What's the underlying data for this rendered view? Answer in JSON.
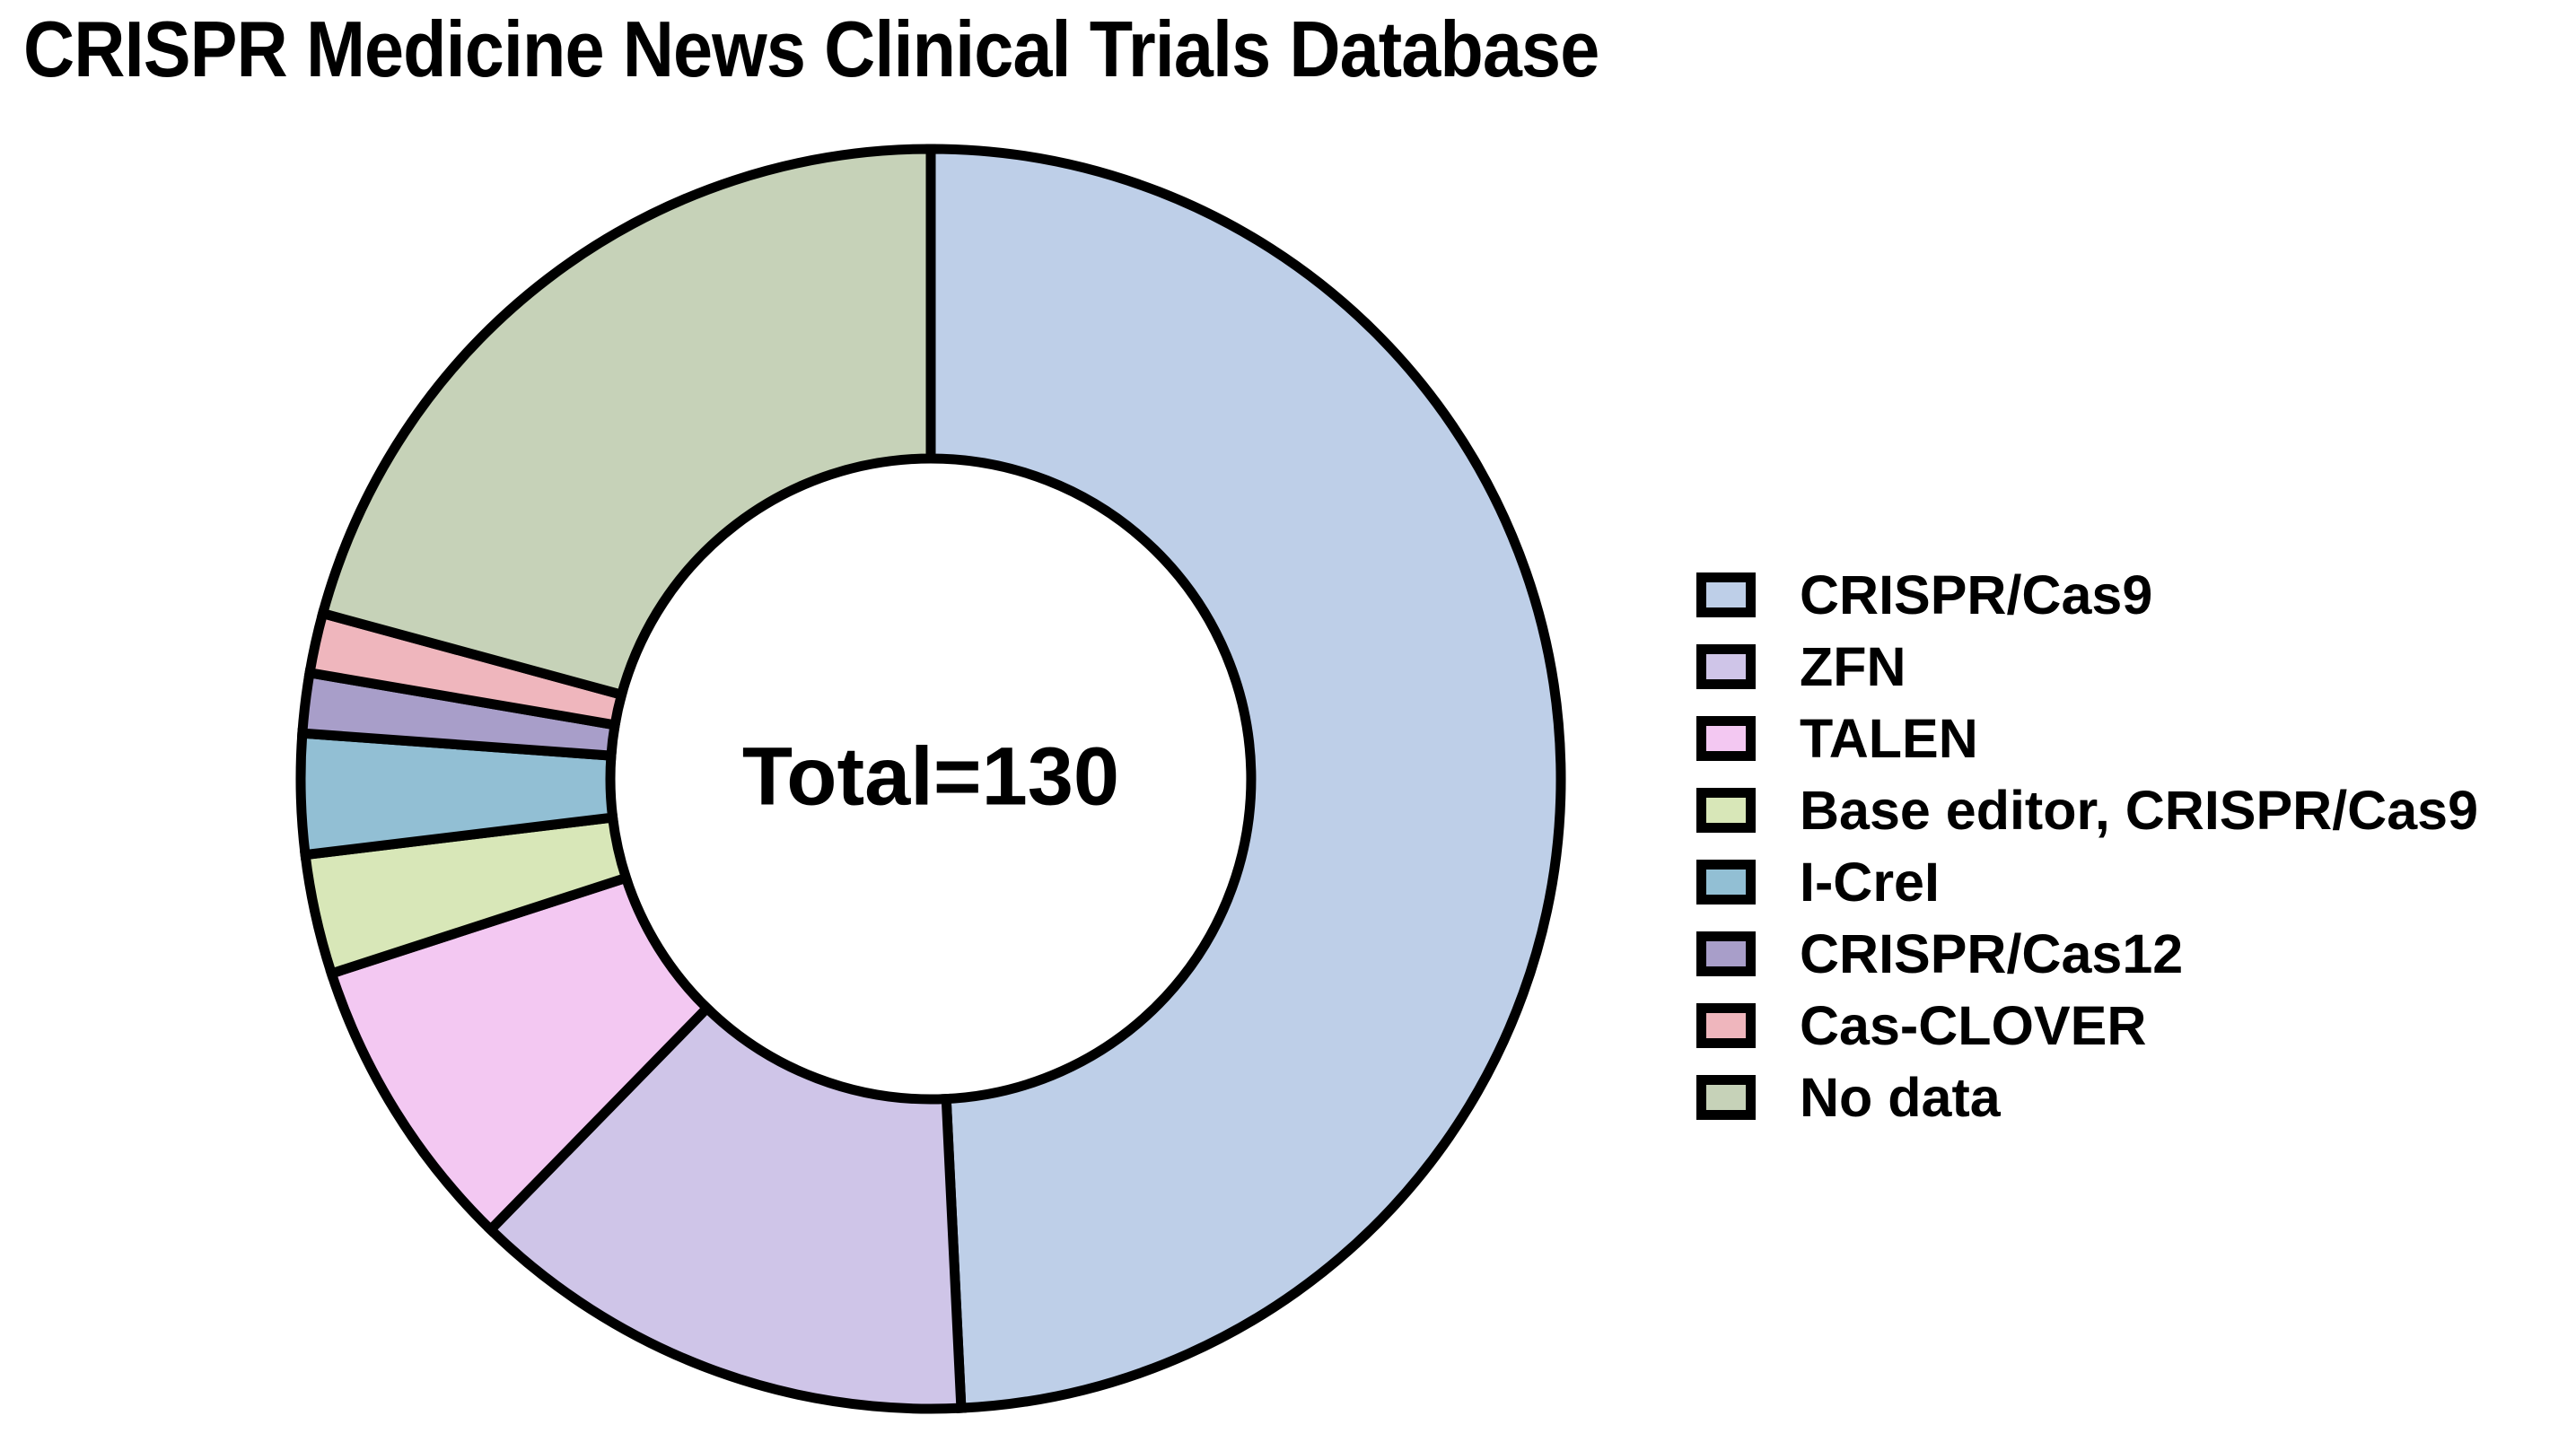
{
  "title": "CRISPR Medicine News Clinical Trials Database",
  "chart_data": {
    "type": "pie",
    "subtype": "donut",
    "title": "CRISPR Medicine News Clinical Trials Database",
    "center_label": "Total=130",
    "total": 130,
    "start_angle_deg": 0,
    "direction": "clockwise",
    "legend_position": "right",
    "stroke_color": "#000000",
    "background_color": "#ffffff",
    "series": [
      {
        "label": "CRISPR/Cas9",
        "value": 64,
        "color": "#becfe8"
      },
      {
        "label": "ZFN",
        "value": 17,
        "color": "#cfc5e8"
      },
      {
        "label": "TALEN",
        "value": 10,
        "color": "#f3c8f2"
      },
      {
        "label": "Base editor, CRISPR/Cas9",
        "value": 4,
        "color": "#d8e7b8"
      },
      {
        "label": "I-CreI",
        "value": 4,
        "color": "#92bfd4"
      },
      {
        "label": "CRISPR/Cas12",
        "value": 2,
        "color": "#a89ec9"
      },
      {
        "label": "Cas-CLOVER",
        "value": 2,
        "color": "#efb6bd"
      },
      {
        "label": "No data",
        "value": 27,
        "color": "#c6d2b8"
      }
    ]
  }
}
